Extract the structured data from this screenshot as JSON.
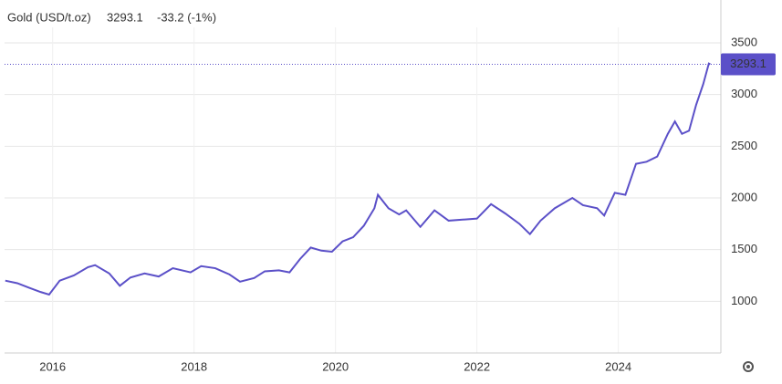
{
  "chart_data": {
    "type": "line",
    "title": "Gold (USD/t.oz)",
    "last_value": 3293.1,
    "change": "-33.2 (-1%)",
    "x": [
      2015.33,
      2015.5,
      2015.67,
      2015.83,
      2015.95,
      2016.1,
      2016.3,
      2016.5,
      2016.6,
      2016.8,
      2016.95,
      2017.1,
      2017.3,
      2017.5,
      2017.7,
      2017.95,
      2018.1,
      2018.3,
      2018.5,
      2018.65,
      2018.85,
      2019.0,
      2019.2,
      2019.35,
      2019.5,
      2019.65,
      2019.8,
      2019.95,
      2020.1,
      2020.25,
      2020.4,
      2020.55,
      2020.6,
      2020.75,
      2020.9,
      2021.0,
      2021.2,
      2021.4,
      2021.6,
      2021.8,
      2022.0,
      2022.2,
      2022.4,
      2022.6,
      2022.75,
      2022.9,
      2023.1,
      2023.35,
      2023.5,
      2023.7,
      2023.8,
      2023.95,
      2024.1,
      2024.25,
      2024.4,
      2024.55,
      2024.7,
      2024.8,
      2024.9,
      2025.0,
      2025.1,
      2025.2,
      2025.28,
      2025.3
    ],
    "series": [
      {
        "name": "Gold",
        "color": "#5b50c8",
        "values": [
          1200,
          1175,
          1130,
          1090,
          1065,
          1200,
          1250,
          1330,
          1350,
          1270,
          1150,
          1230,
          1270,
          1240,
          1320,
          1280,
          1340,
          1320,
          1260,
          1190,
          1225,
          1290,
          1300,
          1280,
          1410,
          1520,
          1490,
          1480,
          1580,
          1620,
          1730,
          1900,
          2030,
          1900,
          1840,
          1880,
          1720,
          1880,
          1780,
          1790,
          1800,
          1940,
          1850,
          1750,
          1650,
          1780,
          1900,
          2000,
          1930,
          1900,
          1830,
          2050,
          2030,
          2330,
          2350,
          2400,
          2620,
          2740,
          2620,
          2650,
          2900,
          3100,
          3300,
          3293.1
        ]
      }
    ],
    "xlim": [
      2015.32,
      2025.45
    ],
    "xticks": [
      2016,
      2018,
      2020,
      2022,
      2024
    ],
    "ylim": [
      500,
      3650
    ],
    "yticks": [
      1000,
      1500,
      2000,
      2500,
      3000,
      3500
    ],
    "grid": true,
    "value_color": "#5b50c8",
    "change_color": "#d9534f"
  }
}
